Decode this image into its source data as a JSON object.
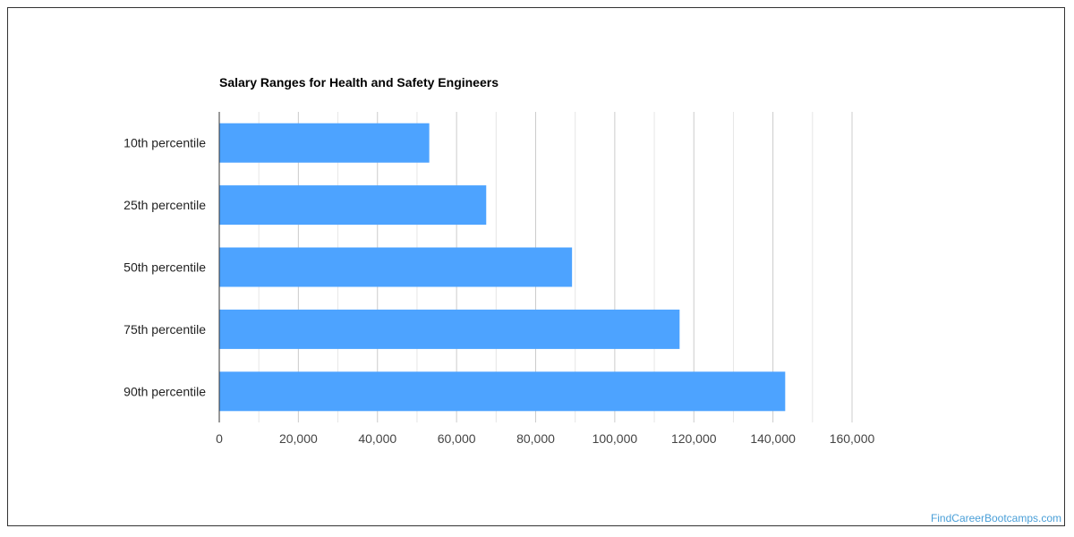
{
  "chart_data": {
    "type": "bar",
    "orientation": "horizontal",
    "title": "Salary Ranges for Health and Safety Engineers",
    "categories": [
      "10th percentile",
      "25th percentile",
      "50th percentile",
      "75th percentile",
      "90th percentile"
    ],
    "values": [
      53100,
      67500,
      89200,
      116400,
      143100
    ],
    "xlabel": "",
    "ylabel": "",
    "xlim": [
      0,
      160000
    ],
    "xticks": [
      "0",
      "20,000",
      "40,000",
      "60,000",
      "80,000",
      "100,000",
      "120,000",
      "140,000",
      "160,000"
    ],
    "grid": true,
    "legend": "none",
    "colors": {
      "bar": "#4da3ff",
      "grid": "#cccccc",
      "axis": "#333333",
      "text": "#222222",
      "tick_text": "#444444"
    }
  },
  "watermark": {
    "text": "FindCareerBootcamps.com",
    "color": "#4a9fd8"
  }
}
